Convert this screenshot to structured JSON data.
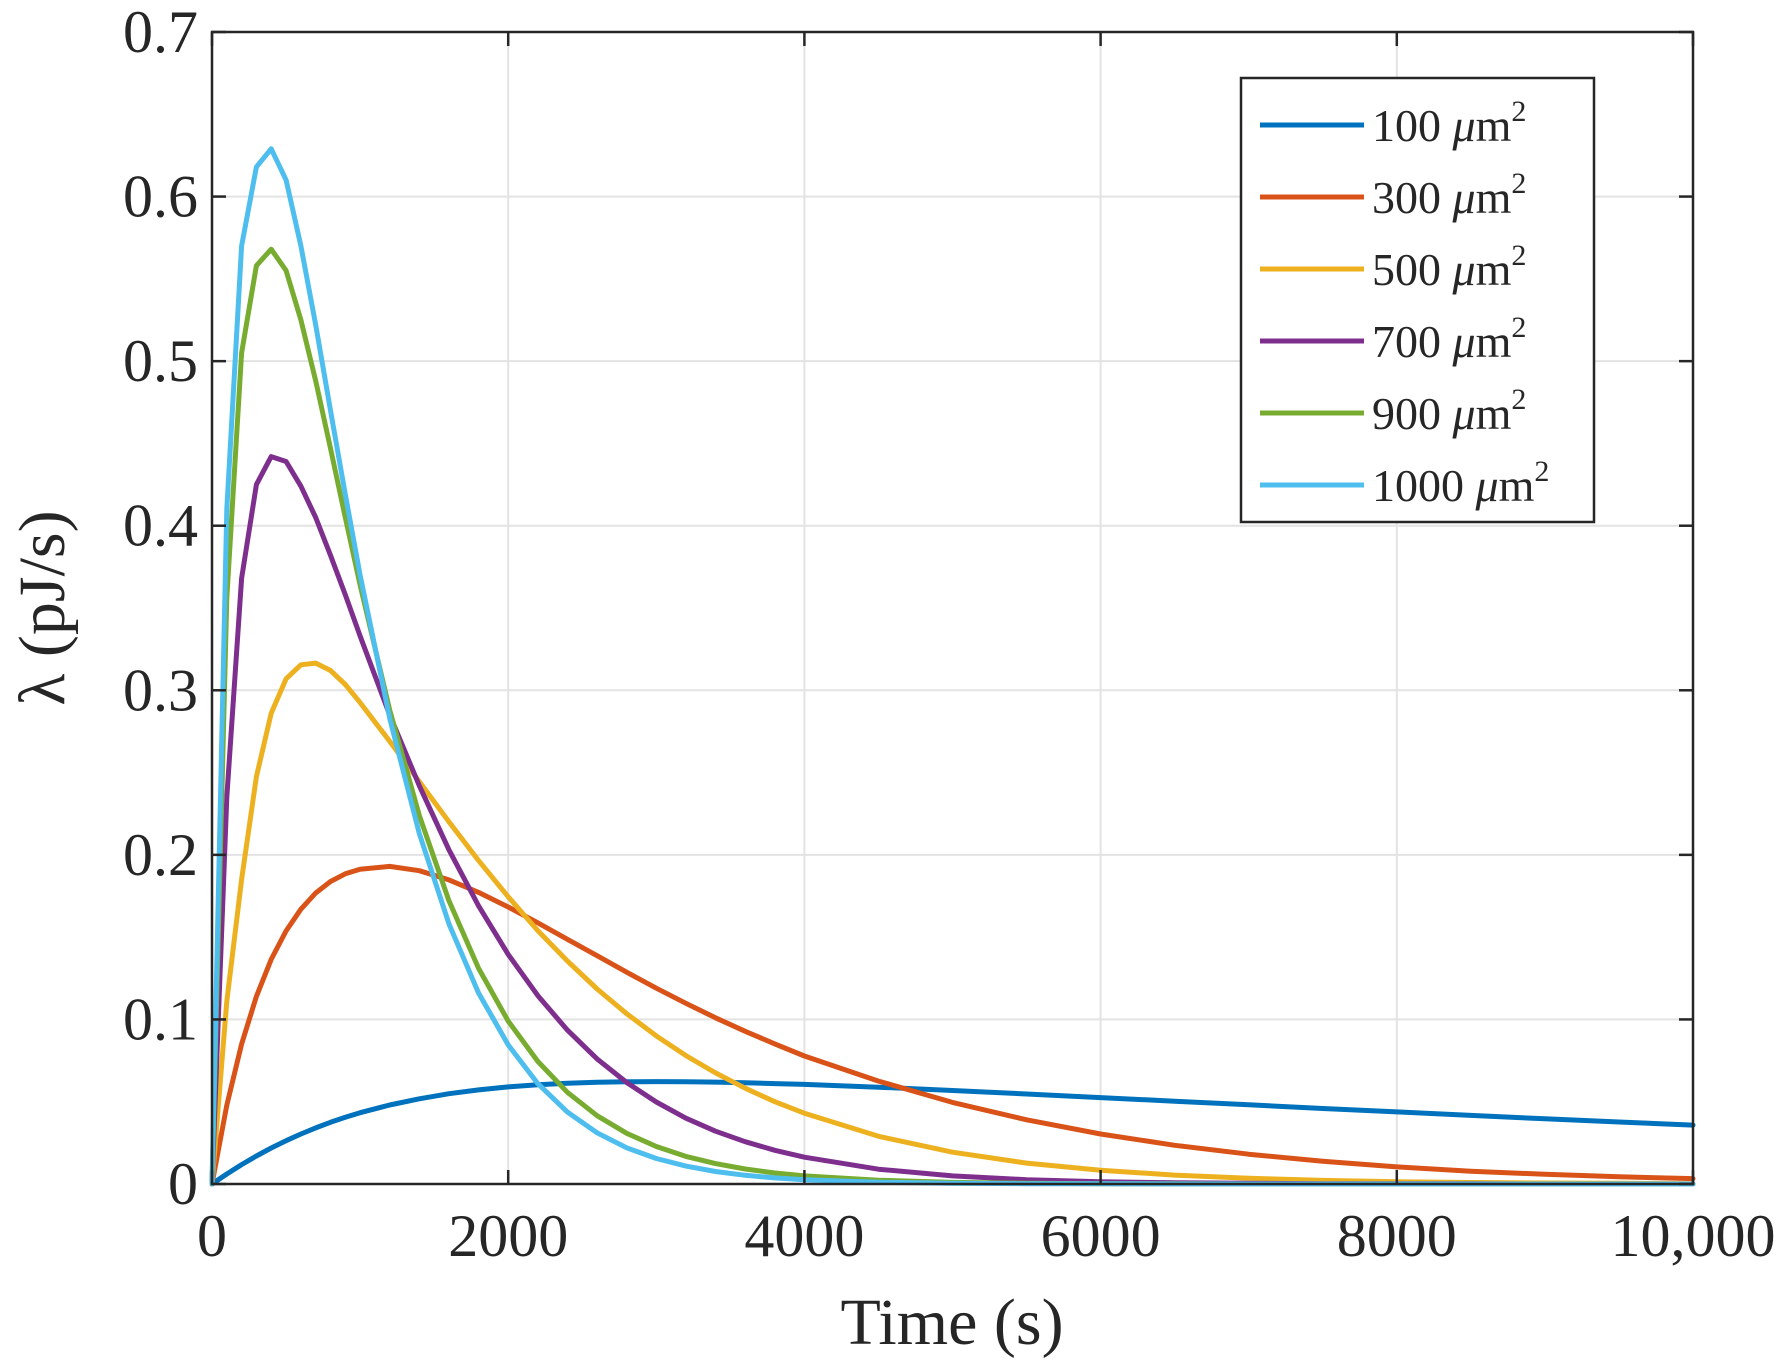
{
  "chart_data": {
    "type": "line",
    "title": "",
    "xlabel": "Time (s)",
    "ylabel": "λ (pJ/s)",
    "xlim": [
      0,
      10000
    ],
    "ylim": [
      0,
      0.7
    ],
    "xticks": [
      0,
      2000,
      4000,
      6000,
      8000,
      10000
    ],
    "xtick_labels": [
      "0",
      "2000",
      "4000",
      "6000",
      "8000",
      "10,000"
    ],
    "yticks": [
      0,
      0.1,
      0.2,
      0.3,
      0.4,
      0.5,
      0.6,
      0.7
    ],
    "ytick_labels": [
      "0",
      "0.1",
      "0.2",
      "0.3",
      "0.4",
      "0.5",
      "0.6",
      "0.7"
    ],
    "grid": true,
    "legend_position": "top-right",
    "unit_label": "μm",
    "unit_exponent": "2",
    "x": [
      0,
      100,
      200,
      300,
      400,
      500,
      600,
      700,
      800,
      900,
      1000,
      1200,
      1400,
      1600,
      1800,
      2000,
      2200,
      2400,
      2600,
      2800,
      3000,
      3200,
      3400,
      3600,
      3800,
      4000,
      4500,
      5000,
      5500,
      6000,
      6500,
      7000,
      7500,
      8000,
      8500,
      9000,
      9500,
      10000
    ],
    "series": [
      {
        "name": "100",
        "color": "#0072BD",
        "values": [
          0,
          0.0061,
          0.0118,
          0.017,
          0.0219,
          0.0263,
          0.0304,
          0.0341,
          0.0375,
          0.0405,
          0.0433,
          0.048,
          0.0518,
          0.0549,
          0.0572,
          0.059,
          0.0603,
          0.0612,
          0.0618,
          0.0621,
          0.0622,
          0.0621,
          0.0619,
          0.0615,
          0.061,
          0.0605,
          0.0588,
          0.0568,
          0.0547,
          0.0525,
          0.0503,
          0.0481,
          0.0459,
          0.0438,
          0.0417,
          0.0396,
          0.0377,
          0.0358
        ]
      },
      {
        "name": "300",
        "color": "#D95319",
        "values": [
          0,
          0.0479,
          0.085,
          0.114,
          0.1365,
          0.1538,
          0.167,
          0.1768,
          0.1838,
          0.1885,
          0.1913,
          0.193,
          0.1904,
          0.1848,
          0.1772,
          0.1683,
          0.1587,
          0.1487,
          0.1387,
          0.1287,
          0.119,
          0.1098,
          0.101,
          0.0928,
          0.0851,
          0.0778,
          0.0625,
          0.0496,
          0.039,
          0.0304,
          0.0235,
          0.0181,
          0.0138,
          0.0104,
          0.0078,
          0.0059,
          0.0044,
          0.0033
        ]
      },
      {
        "name": "500",
        "color": "#EDB120",
        "values": [
          0,
          0.111,
          0.185,
          0.2475,
          0.286,
          0.307,
          0.3155,
          0.3165,
          0.312,
          0.3035,
          0.2925,
          0.269,
          0.2445,
          0.22,
          0.1965,
          0.1745,
          0.154,
          0.1355,
          0.1185,
          0.1035,
          0.09,
          0.078,
          0.0675,
          0.0582,
          0.05,
          0.043,
          0.029,
          0.0193,
          0.0127,
          0.0083,
          0.0054,
          0.0035,
          0.0022,
          0.0014,
          0.0009,
          0.0006,
          0.0004,
          0.0002
        ]
      },
      {
        "name": "700",
        "color": "#7E2F8E",
        "values": [
          0,
          0.235,
          0.368,
          0.425,
          0.442,
          0.439,
          0.424,
          0.405,
          0.382,
          0.358,
          0.333,
          0.285,
          0.242,
          0.203,
          0.169,
          0.1395,
          0.1145,
          0.0935,
          0.076,
          0.0617,
          0.0498,
          0.04,
          0.0321,
          0.0257,
          0.0205,
          0.0163,
          0.009,
          0.0049,
          0.0026,
          0.0014,
          0.0007,
          0.0004,
          0.0002,
          0.0001,
          0.0001,
          0,
          0,
          0
        ]
      },
      {
        "name": "900",
        "color": "#77AC30",
        "values": [
          0,
          0.356,
          0.505,
          0.558,
          0.568,
          0.555,
          0.525,
          0.488,
          0.447,
          0.405,
          0.364,
          0.288,
          0.224,
          0.172,
          0.131,
          0.099,
          0.0745,
          0.0557,
          0.0415,
          0.0308,
          0.0228,
          0.0168,
          0.0124,
          0.0091,
          0.0067,
          0.0049,
          0.0023,
          0.001,
          0.0004,
          0.0002,
          0.0001,
          0,
          0,
          0,
          0,
          0,
          0,
          0
        ]
      },
      {
        "name": "1000",
        "color": "#4DBEEE",
        "values": [
          0,
          0.41,
          0.57,
          0.618,
          0.629,
          0.61,
          0.57,
          0.522,
          0.47,
          0.419,
          0.37,
          0.283,
          0.213,
          0.158,
          0.116,
          0.0845,
          0.061,
          0.0437,
          0.0311,
          0.022,
          0.0155,
          0.0109,
          0.0076,
          0.0053,
          0.0037,
          0.0026,
          0.0011,
          0.0004,
          0.0002,
          0.0001,
          0,
          0,
          0,
          0,
          0,
          0,
          0,
          0
        ]
      }
    ]
  }
}
